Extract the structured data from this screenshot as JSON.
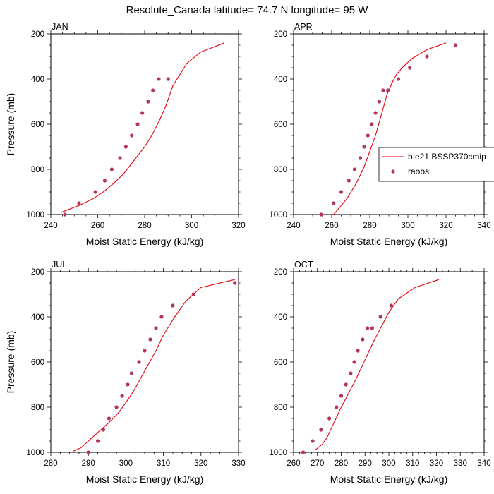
{
  "figure": {
    "title": "Resolute_Canada  latitude= 74.7 N longitude= 95 W",
    "legend": {
      "placement": "right of APR panel",
      "model_label": "b.e21.BSSP370cmip",
      "obs_label": "raobs"
    }
  },
  "colors": {
    "model": "#e8000b",
    "obs": "#b3345d"
  },
  "chart_data": [
    {
      "type": "line",
      "title": "JAN",
      "xlabel": "Moist Static Energy (kJ/kg)",
      "ylabel": "Pressure (mb)",
      "xlim": [
        240,
        320
      ],
      "ylim": [
        1000,
        200
      ],
      "xticks": [
        240,
        260,
        280,
        300,
        320
      ],
      "yticks": [
        200,
        400,
        600,
        800,
        1000
      ],
      "grid": false,
      "series": [
        {
          "name": "b.e21.BSSP370cmip",
          "kind": "line",
          "x": [
            244.5,
            252,
            258,
            263,
            267,
            271,
            274,
            277,
            280,
            283,
            286,
            289,
            292,
            298,
            304,
            314
          ],
          "y": [
            990,
            960,
            930,
            895,
            860,
            820,
            780,
            740,
            700,
            650,
            590,
            520,
            430,
            330,
            280,
            240
          ]
        },
        {
          "name": "raobs",
          "kind": "scatter",
          "x": [
            246,
            252,
            259,
            263,
            266,
            269.5,
            272,
            274.5,
            277,
            279,
            281.5,
            283.5,
            286,
            290
          ],
          "y": [
            1000,
            950,
            900,
            850,
            800,
            750,
            700,
            650,
            600,
            550,
            500,
            450,
            400,
            400
          ]
        }
      ]
    },
    {
      "type": "line",
      "title": "APR",
      "xlabel": "Moist Static Energy (kJ/kg)",
      "ylabel": "",
      "xlim": [
        240,
        340
      ],
      "ylim": [
        1000,
        200
      ],
      "xticks": [
        240,
        260,
        280,
        300,
        320,
        340
      ],
      "yticks": [
        200,
        400,
        600,
        800,
        1000
      ],
      "grid": false,
      "series": [
        {
          "name": "b.e21.BSSP370cmip",
          "kind": "line",
          "x": [
            261,
            268,
            273,
            277,
            280,
            283,
            285,
            287,
            289,
            291.5,
            294,
            297,
            302,
            310,
            320
          ],
          "y": [
            1000,
            930,
            860,
            790,
            720,
            650,
            590,
            530,
            470,
            420,
            380,
            350,
            310,
            270,
            240
          ]
        },
        {
          "name": "raobs",
          "kind": "scatter",
          "x": [
            254.5,
            261,
            265,
            269,
            272,
            275,
            277,
            279,
            281,
            283,
            285,
            287,
            289.5,
            295,
            301,
            310,
            325
          ],
          "y": [
            1000,
            950,
            900,
            850,
            800,
            750,
            700,
            650,
            600,
            550,
            500,
            450,
            450,
            400,
            350,
            300,
            250
          ]
        }
      ]
    },
    {
      "type": "line",
      "title": "JUL",
      "xlabel": "Moist Static Energy (kJ/kg)",
      "ylabel": "Pressure (mb)",
      "xlim": [
        280,
        330
      ],
      "ylim": [
        1000,
        200
      ],
      "xticks": [
        280,
        290,
        300,
        310,
        320,
        330
      ],
      "yticks": [
        200,
        400,
        600,
        800,
        1000
      ],
      "grid": false,
      "series": [
        {
          "name": "b.e21.BSSP370cmip",
          "kind": "line",
          "x": [
            286,
            288,
            290,
            292,
            294,
            296,
            298,
            300,
            302,
            304,
            306,
            308,
            310,
            313,
            316,
            320,
            329
          ],
          "y": [
            995,
            980,
            950,
            920,
            890,
            860,
            825,
            780,
            730,
            670,
            610,
            550,
            480,
            400,
            330,
            270,
            235
          ]
        },
        {
          "name": "raobs",
          "kind": "scatter",
          "x": [
            290,
            292.5,
            294,
            295.5,
            297.5,
            299,
            300.5,
            301.5,
            303.5,
            305,
            306.5,
            308,
            309.5,
            312.5,
            318,
            329
          ],
          "y": [
            1000,
            950,
            900,
            850,
            800,
            750,
            700,
            650,
            600,
            550,
            500,
            450,
            400,
            350,
            300,
            250
          ]
        }
      ]
    },
    {
      "type": "line",
      "title": "OCT",
      "xlabel": "Moist Static Energy (kJ/kg)",
      "ylabel": "",
      "xlim": [
        260,
        340
      ],
      "ylim": [
        1000,
        200
      ],
      "xticks": [
        260,
        270,
        280,
        290,
        300,
        310,
        320,
        330,
        340
      ],
      "yticks": [
        200,
        400,
        600,
        800,
        1000
      ],
      "grid": false,
      "series": [
        {
          "name": "b.e21.BSSP370cmip",
          "kind": "line",
          "x": [
            269,
            272,
            274,
            276,
            278,
            280,
            282,
            284,
            286,
            288,
            290,
            292,
            294,
            297,
            300,
            304,
            311,
            321
          ],
          "y": [
            990,
            965,
            935,
            890,
            845,
            800,
            760,
            720,
            680,
            635,
            590,
            545,
            500,
            440,
            380,
            320,
            270,
            235
          ]
        },
        {
          "name": "raobs",
          "kind": "scatter",
          "x": [
            264,
            268,
            271.5,
            275,
            278,
            280,
            282,
            284,
            285.5,
            287,
            289,
            291,
            293,
            296.5,
            301
          ],
          "y": [
            1000,
            950,
            900,
            850,
            800,
            750,
            700,
            650,
            600,
            550,
            500,
            450,
            450,
            400,
            350
          ]
        }
      ]
    }
  ]
}
